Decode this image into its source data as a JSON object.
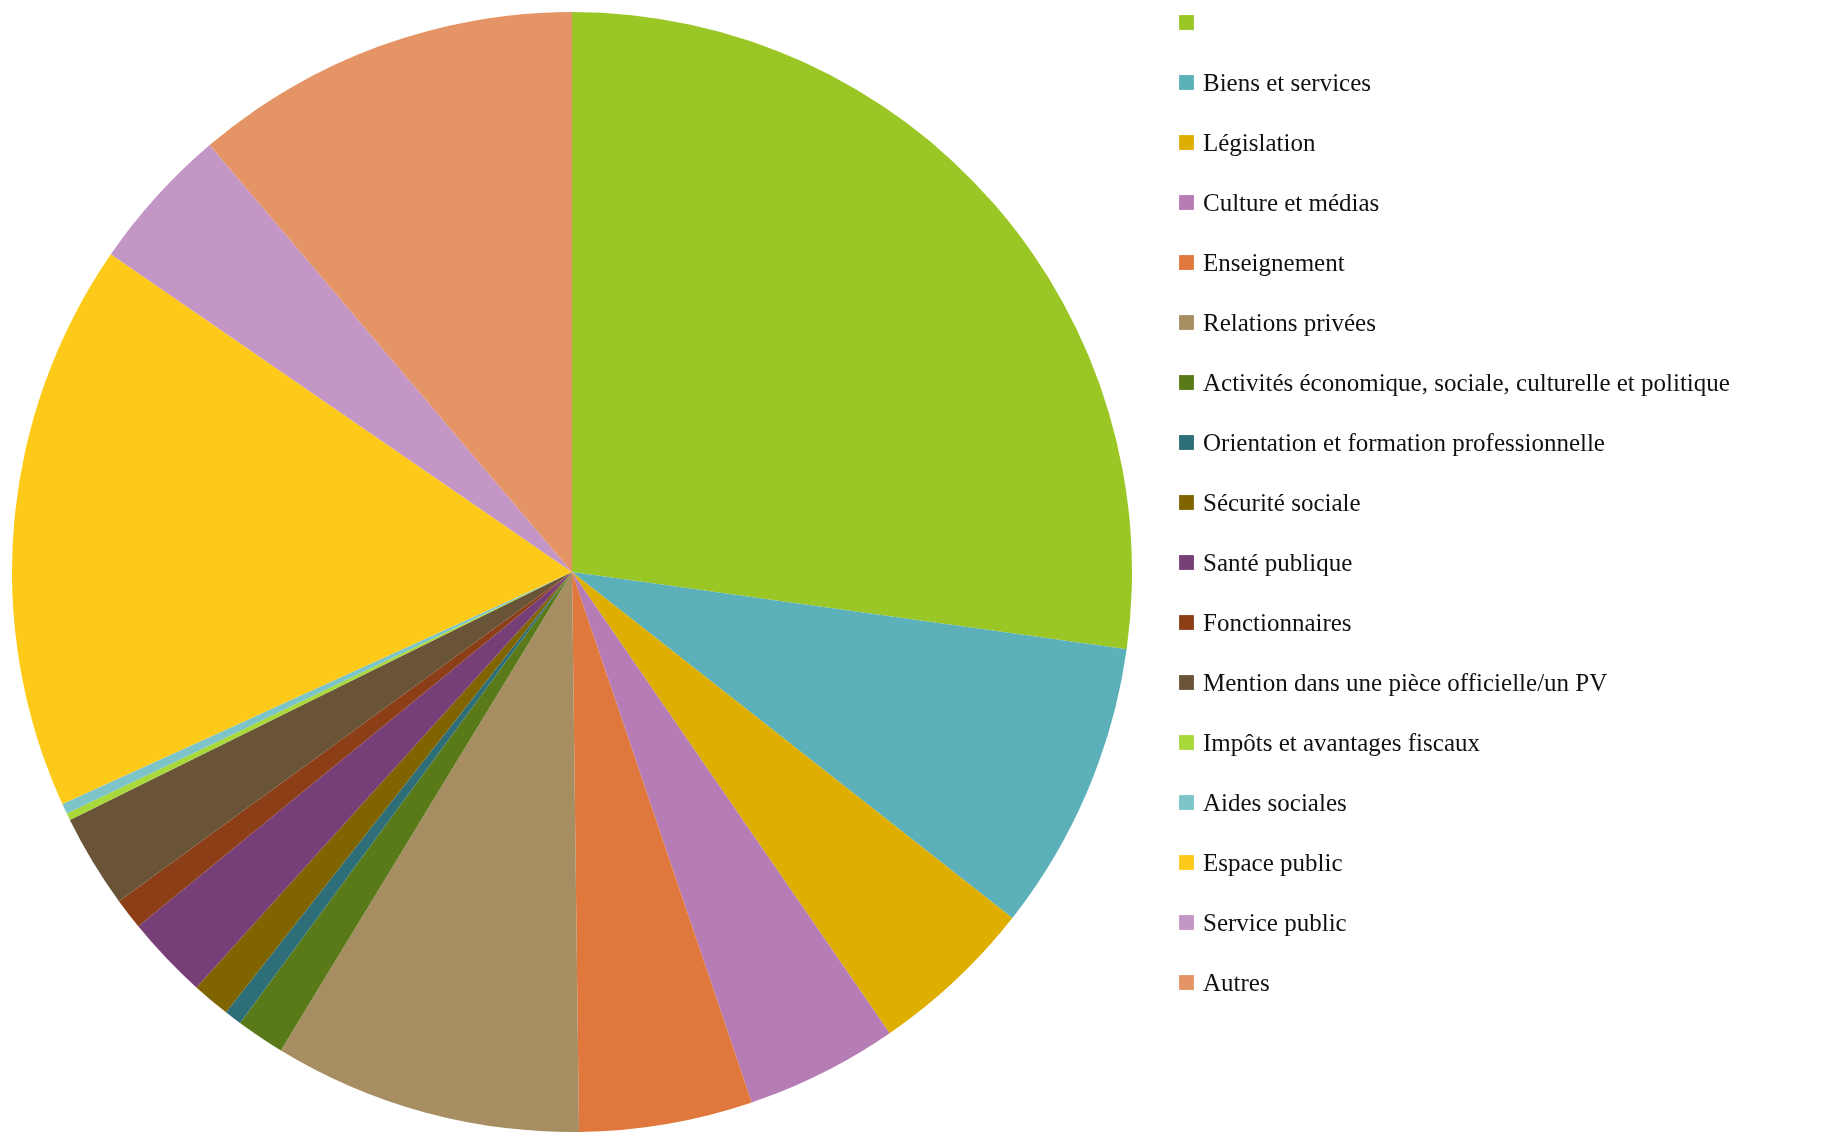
{
  "chart_data": {
    "type": "pie",
    "legend": "right",
    "categories": [
      null,
      "Biens et services",
      "Législation",
      "Culture et médias",
      "Enseignement",
      "Relations privées",
      "Activités économique, sociale, culturelle et politique",
      "Orientation et formation professionnelle",
      "Sécurité sociale",
      "Santé publique",
      "Fonctionnaires",
      "Mention dans une pièce officielle/un PV",
      "Impôts et avantages fiscaux",
      "Aides sociales",
      "Espace public",
      "Service public",
      "Autres"
    ],
    "values": [
      27.2,
      8.4,
      4.8,
      4.4,
      5.0,
      8.9,
      1.4,
      0.5,
      1.1,
      2.4,
      0.9,
      2.7,
      0.2,
      0.3,
      16.4,
      4.2,
      11.2
    ],
    "colors": [
      "#9ac726",
      "#5bb0b9",
      "#deae00",
      "#b57cb5",
      "#e0783e",
      "#a78e62",
      "#5a7a1a",
      "#2d6e78",
      "#806400",
      "#773f78",
      "#8c3e17",
      "#6a5438",
      "#a8d83a",
      "#7cc4c8",
      "#fdca1a",
      "#c496c6",
      "#e59465"
    ]
  }
}
